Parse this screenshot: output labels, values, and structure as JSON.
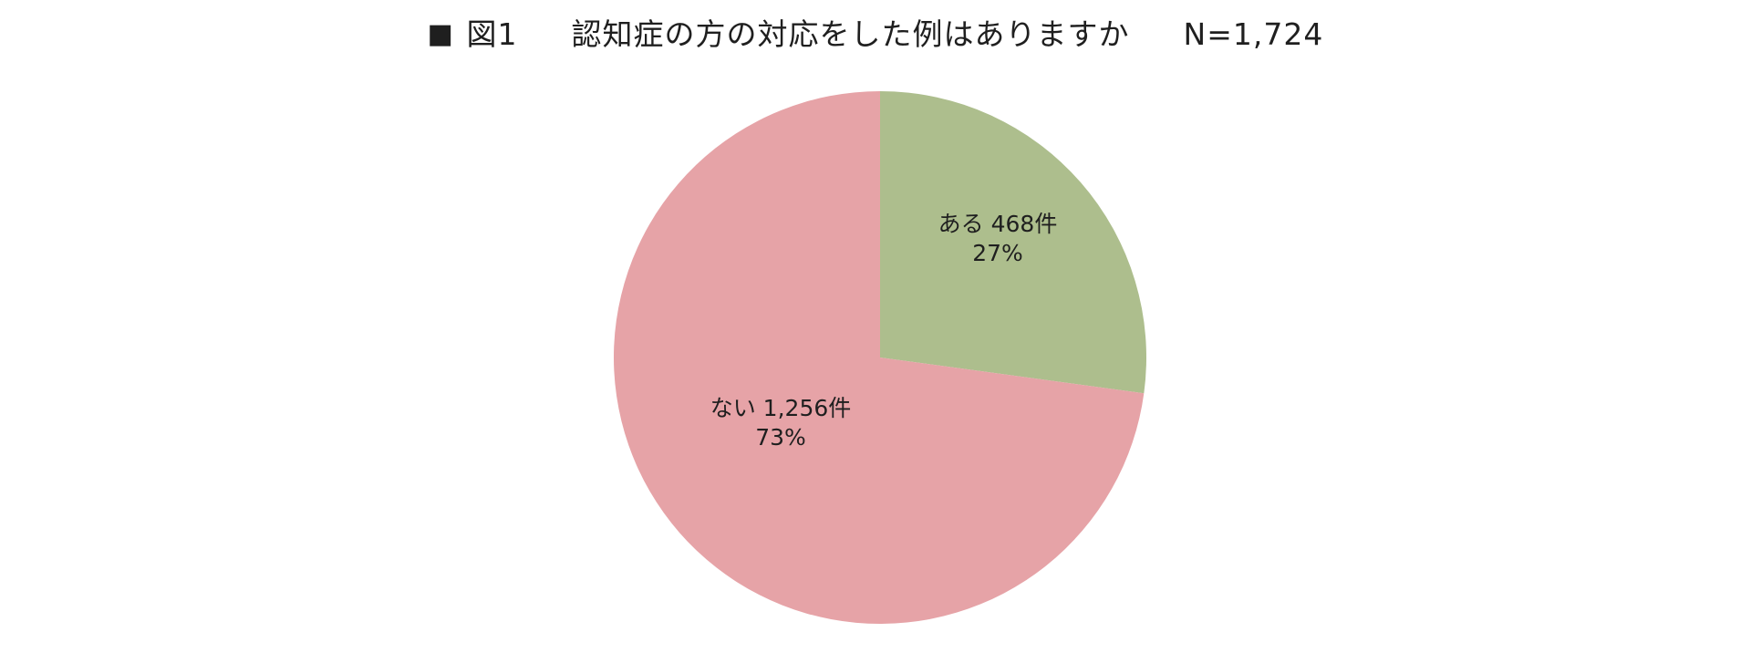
{
  "chart_data": {
    "type": "pie",
    "title": {
      "marker": "■",
      "figure_label": "図1",
      "question": "認知症の方の対応をした例はありますか",
      "sample_size": "N=1,724"
    },
    "slices": [
      {
        "label": "ある",
        "value": 468,
        "count_text": "468件",
        "percent_text": "27%",
        "percent": 27,
        "color": "#adbe8d"
      },
      {
        "label": "ない",
        "value": 1256,
        "count_text": "1,256件",
        "percent_text": "73%",
        "percent": 73,
        "color": "#e6a3a7"
      }
    ],
    "start_angle": "12 o'clock",
    "direction": "clockwise",
    "legend": "none"
  }
}
